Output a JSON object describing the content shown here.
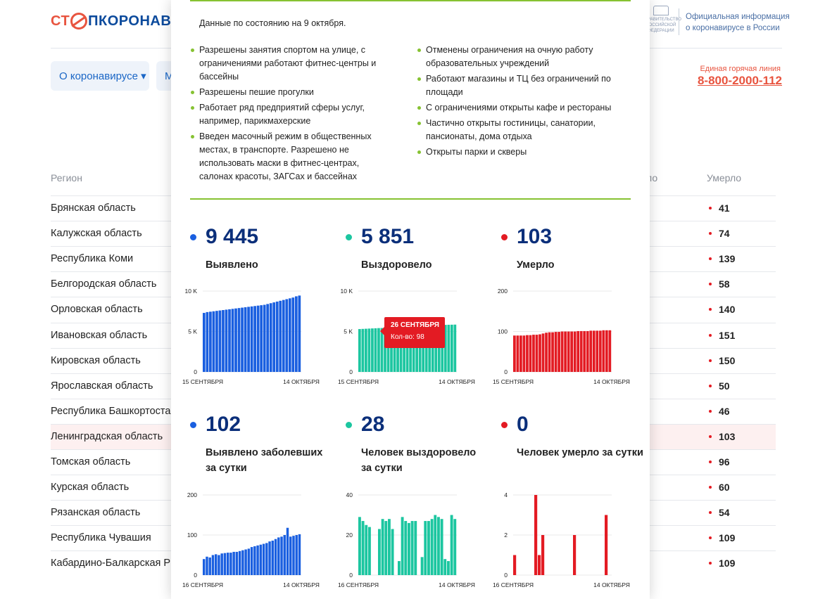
{
  "header": {
    "logo_prefix": "СТ",
    "logo_rest": "ПКОРОНАВИ",
    "gov_caption": "ПРАВИТЕЛЬСТВО РОССИЙСКОЙ ФЕДЕРАЦИИ",
    "official_line1": "Официальная информация",
    "official_line2": "о коронавирусе в России",
    "nav_about": "О коронавирусе ▾",
    "nav_second": "М",
    "hotline_label": "Единая горячая линия",
    "hotline_number": "8-800-2000-112"
  },
  "table": {
    "col_region": "Регион",
    "col_partial": "ло",
    "col_dead": "Умерло",
    "rows": [
      {
        "region": "Брянская область",
        "dead": "41"
      },
      {
        "region": "Калужская область",
        "dead": "74"
      },
      {
        "region": "Республика Коми",
        "dead": "139"
      },
      {
        "region": "Белгородская область",
        "dead": "58"
      },
      {
        "region": "Орловская область",
        "dead": "140"
      },
      {
        "region": "Ивановская область",
        "dead": "151"
      },
      {
        "region": "Кировская область",
        "dead": "150"
      },
      {
        "region": "Ярославская область",
        "dead": "50"
      },
      {
        "region": "Республика Башкортоста",
        "dead": "46"
      },
      {
        "region": "Ленинградская область",
        "dead": "103"
      },
      {
        "region": "Томская область",
        "dead": "96"
      },
      {
        "region": "Курская область",
        "dead": "60"
      },
      {
        "region": "Рязанская область",
        "dead": "54"
      },
      {
        "region": "Республика Чувашия",
        "dead": "109"
      },
      {
        "region": "Кабардино-Балкарская Р",
        "dead": "109"
      }
    ]
  },
  "modal": {
    "date_line": "Данные по состоянию на 9 октября.",
    "left_bullets": [
      "Разрешены занятия спортом на улице, с ограничениями работают фитнес-центры и бассейны",
      "Разрешены пешие прогулки",
      "Работает ряд предприятий сферы услуг, например, парикмахерские",
      "Введен масочный режим в общественных местах, в транспорте. Разрешено не использовать маски в фитнес-центрах, салонах красоты, ЗАГСах и бассейнах"
    ],
    "right_bullets": [
      "Отменены ограничения на очную работу образовательных учреждений",
      "Работают магазины и ТЦ без ограничений по площади",
      "С ограничениями открыты кафе и рестораны",
      "Частично открыты гостиницы, санатории, пансионаты, дома отдыха",
      "Открыты парки и скверы"
    ],
    "stats": [
      {
        "value": "9 445",
        "label": "Выявлено",
        "color": "#1a5fe0"
      },
      {
        "value": "5 851",
        "label": "Выздоровело",
        "color": "#1cc6a0"
      },
      {
        "value": "103",
        "label": "Умерло",
        "color": "#e31b23"
      },
      {
        "value": "102",
        "label": "Выявлено заболевших за сутки",
        "color": "#1a5fe0"
      },
      {
        "value": "28",
        "label": "Человек выздоровело за сутки",
        "color": "#1cc6a0"
      },
      {
        "value": "0",
        "label": "Человек умерло за сутки",
        "color": "#e31b23"
      }
    ],
    "tooltip": {
      "date": "26 СЕНТЯБРЯ",
      "count": "Кол-во: 98"
    }
  },
  "chart_data": [
    {
      "type": "bar",
      "title": "Выявлено",
      "color": "#1a5fe0",
      "x_start": "15 СЕНТЯБРЯ",
      "x_end": "14 ОКТЯБРЯ",
      "ylim": [
        0,
        10000
      ],
      "yticks": [
        "0",
        "5 K",
        "10 K"
      ],
      "values": [
        7300,
        7400,
        7450,
        7500,
        7550,
        7600,
        7650,
        7700,
        7750,
        7800,
        7850,
        7900,
        7950,
        8000,
        8050,
        8100,
        8150,
        8200,
        8250,
        8300,
        8400,
        8500,
        8600,
        8700,
        8800,
        8900,
        9000,
        9100,
        9200,
        9350,
        9445
      ]
    },
    {
      "type": "bar",
      "title": "Выздоровело",
      "color": "#1cc6a0",
      "x_start": "15 СЕНТЯБРЯ",
      "x_end": "14 ОКТЯБРЯ",
      "ylim": [
        0,
        10000
      ],
      "yticks": [
        "0",
        "5 K",
        "10 K"
      ],
      "values": [
        5300,
        5320,
        5340,
        5360,
        5380,
        5400,
        5420,
        5430,
        5440,
        5460,
        5480,
        5500,
        5520,
        5540,
        5560,
        5580,
        5600,
        5620,
        5640,
        5660,
        5680,
        5700,
        5720,
        5740,
        5760,
        5780,
        5800,
        5820,
        5830,
        5840,
        5851
      ]
    },
    {
      "type": "bar",
      "title": "Умерло",
      "color": "#e31b23",
      "x_start": "15 СЕНТЯБРЯ",
      "x_end": "14 ОКТЯБРЯ",
      "ylim": [
        0,
        200
      ],
      "yticks": [
        "0",
        "100",
        "200"
      ],
      "values": [
        90,
        90,
        90,
        90,
        91,
        91,
        92,
        92,
        93,
        95,
        97,
        98,
        98,
        99,
        99,
        100,
        100,
        100,
        100,
        100,
        101,
        101,
        101,
        101,
        102,
        102,
        102,
        102,
        103,
        103,
        103
      ]
    },
    {
      "type": "bar",
      "title": "Выявлено заболевших за сутки",
      "color": "#1a5fe0",
      "x_start": "16 СЕНТЯБРЯ",
      "x_end": "14 ОКТЯБРЯ",
      "ylim": [
        0,
        200
      ],
      "yticks": [
        "0",
        "100",
        "200"
      ],
      "values": [
        40,
        46,
        44,
        50,
        52,
        50,
        54,
        55,
        56,
        56,
        58,
        58,
        60,
        62,
        64,
        66,
        70,
        72,
        74,
        76,
        78,
        80,
        84,
        86,
        90,
        94,
        96,
        100,
        118,
        96,
        98,
        100,
        102
      ]
    },
    {
      "type": "bar",
      "title": "Человек выздоровело за сутки",
      "color": "#1cc6a0",
      "x_start": "16 СЕНТЯБРЯ",
      "x_end": "14 ОКТЯБРЯ",
      "ylim": [
        0,
        40
      ],
      "yticks": [
        "0",
        "20",
        "40"
      ],
      "values": [
        29,
        27,
        25,
        24,
        0,
        0,
        23,
        28,
        27,
        28,
        23,
        0,
        7,
        29,
        27,
        26,
        27,
        27,
        0,
        9,
        27,
        27,
        28,
        30,
        29,
        28,
        8,
        7,
        30,
        28
      ]
    },
    {
      "type": "bar",
      "title": "Человек умерло за сутки",
      "color": "#e31b23",
      "x_start": "16 СЕНТЯБРЯ",
      "x_end": "14 ОКТЯБРЯ",
      "ylim": [
        0,
        4
      ],
      "yticks": [
        "0",
        "2",
        "4"
      ],
      "values": [
        1,
        0,
        0,
        0,
        0,
        0,
        4,
        1,
        2,
        0,
        0,
        0,
        0,
        0,
        0,
        0,
        0,
        2,
        0,
        0,
        0,
        0,
        0,
        0,
        0,
        0,
        3,
        0
      ]
    }
  ]
}
